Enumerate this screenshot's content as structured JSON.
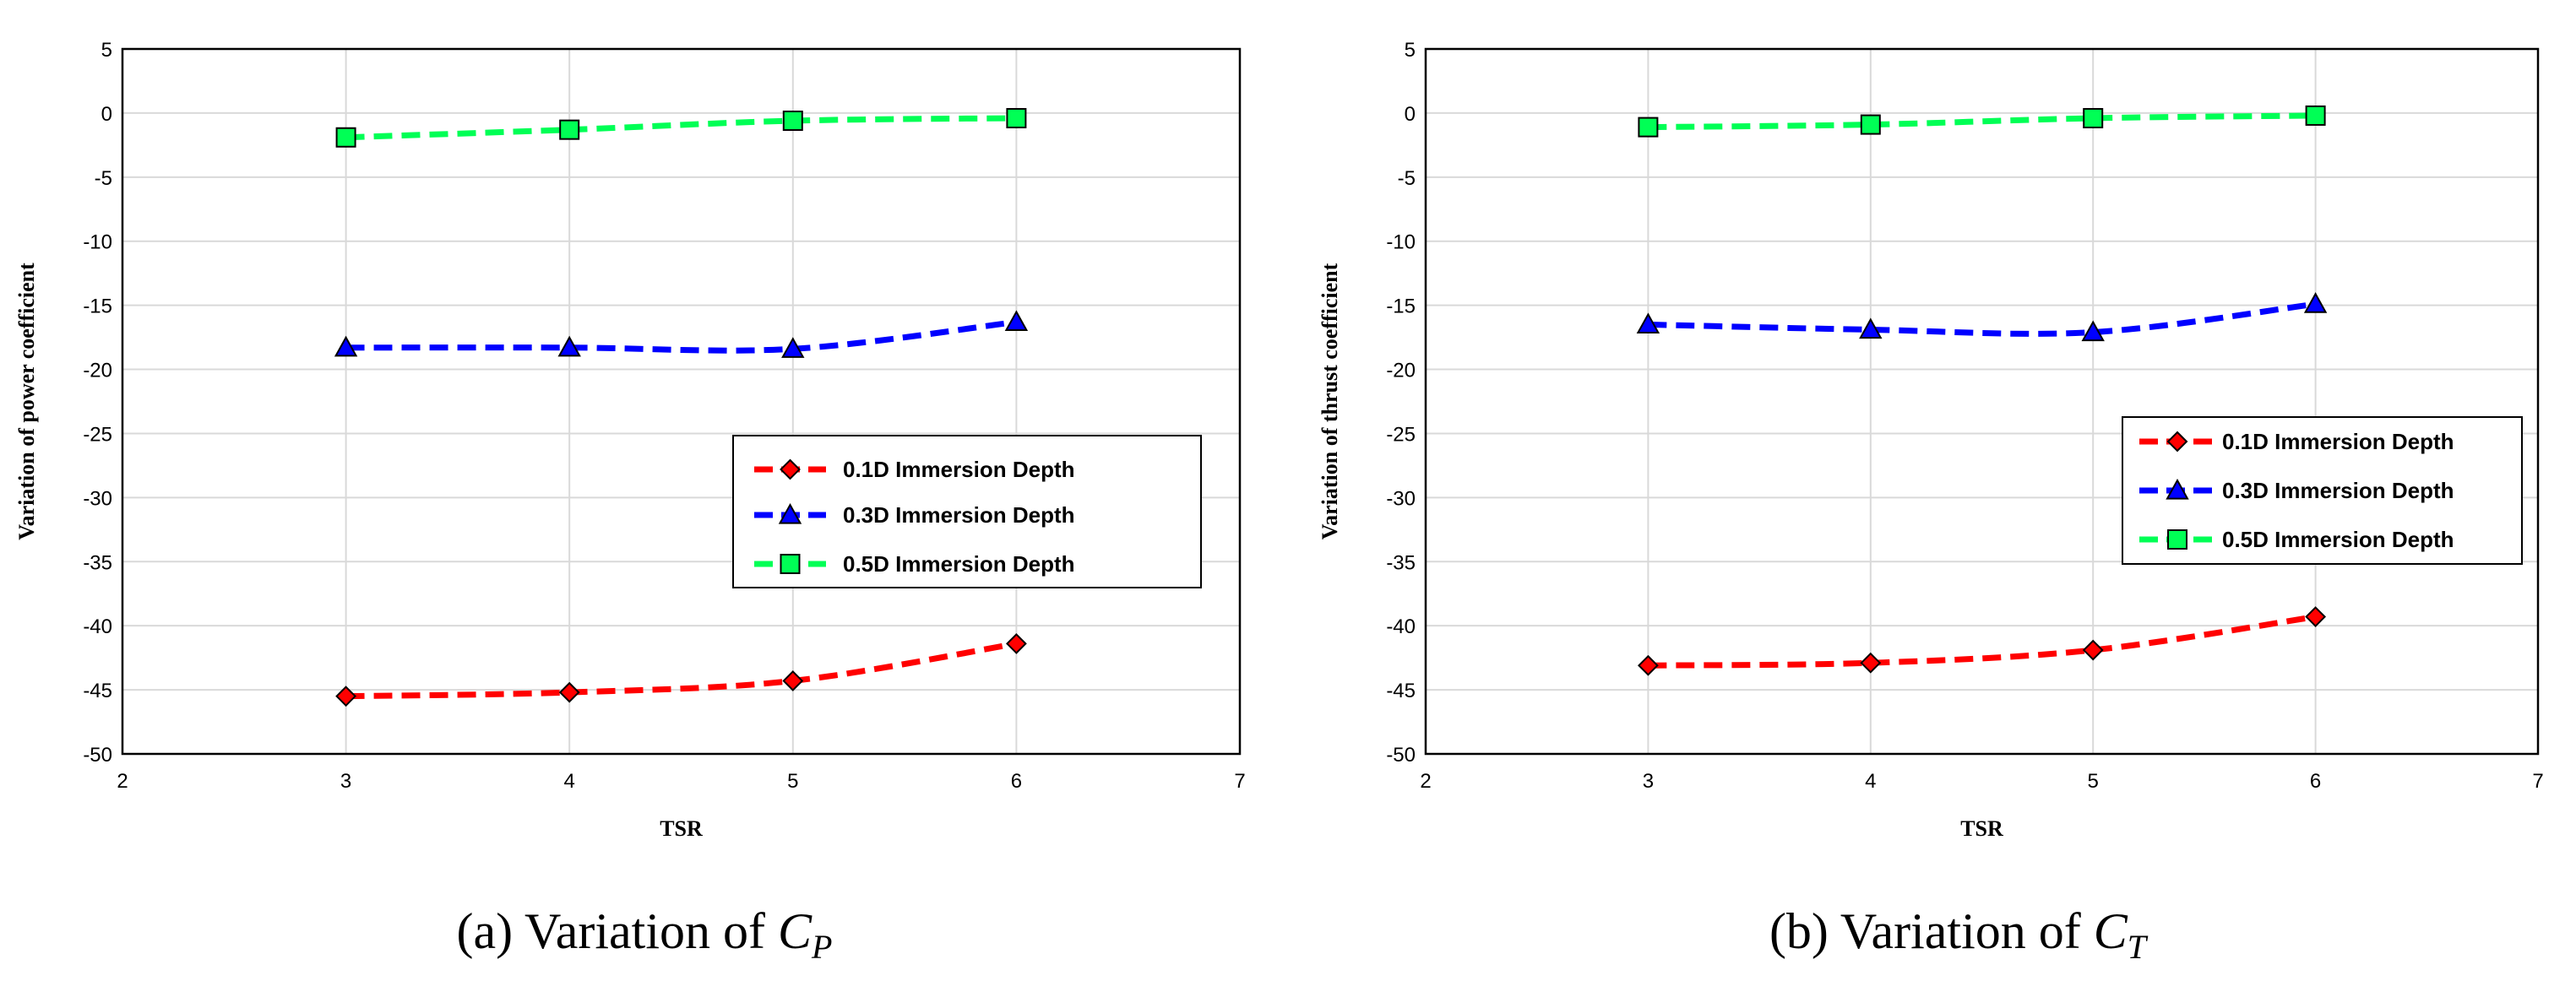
{
  "chart_data": [
    {
      "type": "line",
      "panel_id": "a",
      "xlabel": "TSR",
      "ylabel": "Variation of power coefficient",
      "xlim": [
        2,
        7
      ],
      "ylim": [
        -50,
        5
      ],
      "xticks": [
        2,
        3,
        4,
        5,
        6,
        7
      ],
      "yticks": [
        5,
        0,
        -5,
        -10,
        -15,
        -20,
        -25,
        -30,
        -35,
        -40,
        -45,
        -50
      ],
      "grid": true,
      "legend_position": "middle-right",
      "caption": {
        "prefix": "(a) Variation of ",
        "symbol": "C",
        "subscript": "P"
      },
      "x": [
        3,
        4,
        5,
        6
      ],
      "series": [
        {
          "name": "0.1D Immersion Depth",
          "color": "#ff0000",
          "marker": "diamond",
          "values": [
            -45.5,
            -45.2,
            -44.3,
            -41.4
          ]
        },
        {
          "name": "0.3D Immersion Depth",
          "color": "#0000ff",
          "marker": "triangle",
          "values": [
            -18.3,
            -18.3,
            -18.4,
            -16.3
          ]
        },
        {
          "name": "0.5D Immersion Depth",
          "color": "#00ff55",
          "marker": "square",
          "values": [
            -1.9,
            -1.3,
            -0.6,
            -0.4
          ]
        }
      ]
    },
    {
      "type": "line",
      "panel_id": "b",
      "xlabel": "TSR",
      "ylabel": "Variation of thrust coefficient",
      "xlim": [
        2,
        7
      ],
      "ylim": [
        -50,
        5
      ],
      "xticks": [
        2,
        3,
        4,
        5,
        6,
        7
      ],
      "yticks": [
        5,
        0,
        -5,
        -10,
        -15,
        -20,
        -25,
        -30,
        -35,
        -40,
        -45,
        -50
      ],
      "grid": true,
      "legend_position": "upper-right",
      "caption": {
        "prefix": "(b) Variation of ",
        "symbol": "C",
        "subscript": "T"
      },
      "x": [
        3,
        4,
        5,
        6
      ],
      "series": [
        {
          "name": "0.1D Immersion Depth",
          "color": "#ff0000",
          "marker": "diamond",
          "values": [
            -43.1,
            -42.9,
            -41.9,
            -39.3
          ]
        },
        {
          "name": "0.3D Immersion Depth",
          "color": "#0000ff",
          "marker": "triangle",
          "values": [
            -16.5,
            -16.9,
            -17.1,
            -14.9
          ]
        },
        {
          "name": "0.5D Immersion Depth",
          "color": "#00ff55",
          "marker": "square",
          "values": [
            -1.1,
            -0.9,
            -0.4,
            -0.2
          ]
        }
      ]
    }
  ]
}
